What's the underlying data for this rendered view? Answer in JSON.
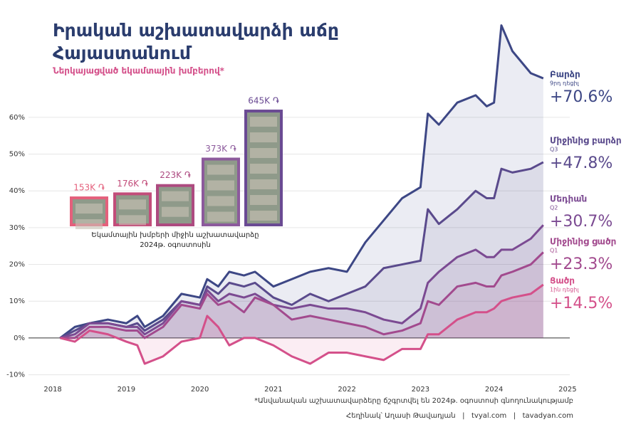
{
  "title": [
    "Իրական աշխատավարձի աճը",
    "Հայաստանում"
  ],
  "subtitle": "Ներկայացված եկամտային խմբերով*",
  "footnote": "*Անվանական աշխատավարձերը ճշգրտվել են 2024թ. օգոստոսի գնողունակությամբ",
  "credits": "Հեղինակ՝ Աղասի Թավադյան   |   tvyal.com   |   tavadyan.com",
  "chart_data": [
    {
      "type": "line",
      "x": [
        2018.1,
        2018.3,
        2018.5,
        2018.75,
        2019.0,
        2019.15,
        2019.25,
        2019.5,
        2019.75,
        2020.0,
        2020.1,
        2020.25,
        2020.4,
        2020.6,
        2020.75,
        2021.0,
        2021.25,
        2021.5,
        2021.75,
        2022.0,
        2022.25,
        2022.5,
        2022.75,
        2023.0,
        2023.1,
        2023.25,
        2023.5,
        2023.75,
        2023.9,
        2024.0,
        2024.1,
        2024.25,
        2024.5,
        2024.67
      ],
      "xlim": [
        2017.67,
        2025.03
      ],
      "xticks": [
        2018,
        2019,
        2020,
        2021,
        2022,
        2023,
        2024,
        2025
      ],
      "ylim": [
        -12.6,
        86.1
      ],
      "yticks": [
        {
          "value": -10,
          "label": "-10%"
        },
        {
          "value": 0,
          "label": "0%"
        },
        {
          "value": 10,
          "label": "10%"
        },
        {
          "value": 20,
          "label": "20%"
        },
        {
          "value": 30,
          "label": "30%"
        },
        {
          "value": 40,
          "label": "40%"
        },
        {
          "value": 50,
          "label": "50%"
        },
        {
          "value": 60,
          "label": "60%"
        }
      ],
      "grid": true,
      "series": [
        {
          "name": "Բարձր",
          "note": "9րդ դեցիլ",
          "color": "#3d4785",
          "values": [
            0,
            3,
            4,
            5,
            4,
            6,
            3,
            6,
            12,
            11,
            16,
            14,
            18,
            17,
            18,
            14,
            16,
            18,
            19,
            18,
            26,
            32,
            38,
            41,
            61,
            58,
            64,
            66,
            63,
            64,
            85,
            78,
            72,
            70.6
          ],
          "end_label": "+70.6%"
        },
        {
          "name": "Միջինից բարձր",
          "note": "Q3",
          "color": "#5a4a8c",
          "values": [
            0,
            2,
            4,
            4,
            3,
            4,
            2,
            5,
            10,
            9,
            14,
            12,
            15,
            14,
            15,
            11,
            9,
            12,
            10,
            12,
            14,
            19,
            20,
            21,
            35,
            31,
            35,
            40,
            38,
            38,
            46,
            45,
            46,
            47.8
          ],
          "end_label": "+47.8%"
        },
        {
          "name": "Մեդիան",
          "note": "Q2",
          "color": "#7b4a92",
          "values": [
            0,
            1,
            4,
            4,
            3,
            3,
            1,
            4,
            10,
            9,
            13,
            10,
            12,
            11,
            12,
            9,
            8,
            9,
            8,
            8,
            7,
            5,
            4,
            8,
            15,
            18,
            22,
            24,
            22,
            22,
            24,
            24,
            27,
            30.7
          ],
          "end_label": "+30.7%"
        },
        {
          "name": "Միջինից ցածր",
          "note": "Q1",
          "color": "#a24a8e",
          "values": [
            0,
            0,
            3,
            3,
            2,
            2,
            0,
            3,
            9,
            8,
            12,
            9,
            10,
            7,
            11,
            9,
            5,
            6,
            5,
            4,
            3,
            1,
            2,
            4,
            10,
            9,
            14,
            15,
            14,
            14,
            17,
            18,
            20,
            23.3
          ],
          "end_label": "+23.3%"
        },
        {
          "name": "Ցածր",
          "note": "1ին դեցիլ",
          "color": "#d4508a",
          "values": [
            0,
            -1,
            2,
            1,
            -1,
            -2,
            -7,
            -5,
            -1,
            0,
            6,
            3,
            -2,
            0,
            0,
            -2,
            -5,
            -7,
            -4,
            -4,
            -5,
            -6,
            -3,
            -3,
            1,
            1,
            5,
            7,
            7,
            8,
            10,
            11,
            12,
            14.5
          ],
          "end_label": "+14.5%"
        }
      ]
    },
    {
      "type": "bar",
      "caption": [
        "Եկամտային խմբերի միջին աշխատավարձը",
        "2024թ. օգոստոսին"
      ],
      "values": [
        153,
        176,
        223,
        373,
        645
      ],
      "value_labels": [
        "153K ֏",
        "176K ֏",
        "223K ֏",
        "373K ֏",
        "645K ֏"
      ],
      "colors": [
        "#e4607c",
        "#c24d7a",
        "#ad4a80",
        "#8c5a9c",
        "#6a4a93"
      ]
    }
  ]
}
